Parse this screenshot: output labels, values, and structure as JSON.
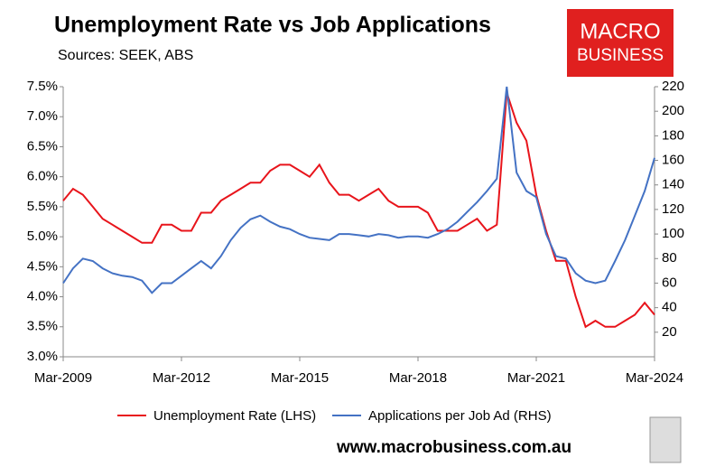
{
  "chart_data": {
    "type": "line",
    "title": "Unemployment Rate vs Job Applications",
    "subtitle": "Sources: SEEK, ABS",
    "logo": [
      "MACRO",
      "BUSINESS"
    ],
    "website": "www.macrobusiness.com.au",
    "x": [
      2009.17,
      2009.42,
      2009.67,
      2009.92,
      2010.17,
      2010.42,
      2010.67,
      2010.92,
      2011.17,
      2011.42,
      2011.67,
      2011.92,
      2012.17,
      2012.42,
      2012.67,
      2012.92,
      2013.17,
      2013.42,
      2013.67,
      2013.92,
      2014.17,
      2014.42,
      2014.67,
      2014.92,
      2015.17,
      2015.42,
      2015.67,
      2015.92,
      2016.17,
      2016.42,
      2016.67,
      2016.92,
      2017.17,
      2017.42,
      2017.67,
      2017.92,
      2018.17,
      2018.42,
      2018.67,
      2018.92,
      2019.17,
      2019.42,
      2019.67,
      2019.92,
      2020.17,
      2020.42,
      2020.67,
      2020.92,
      2021.17,
      2021.42,
      2021.67,
      2021.92,
      2022.17,
      2022.42,
      2022.67,
      2022.92,
      2023.17,
      2023.42,
      2023.67,
      2023.92,
      2024.17
    ],
    "series": [
      {
        "name": "Unemployment Rate (LHS)",
        "color": "#e8141b",
        "axis": "y",
        "values": [
          5.6,
          5.8,
          5.7,
          5.5,
          5.3,
          5.2,
          5.1,
          5.0,
          4.9,
          4.9,
          5.2,
          5.2,
          5.1,
          5.1,
          5.4,
          5.4,
          5.6,
          5.7,
          5.8,
          5.9,
          5.9,
          6.1,
          6.2,
          6.2,
          6.1,
          6.0,
          6.2,
          5.9,
          5.7,
          5.7,
          5.6,
          5.7,
          5.8,
          5.6,
          5.5,
          5.5,
          5.5,
          5.4,
          5.1,
          5.1,
          5.1,
          5.2,
          5.3,
          5.1,
          5.2,
          7.4,
          6.9,
          6.6,
          5.7,
          5.1,
          4.6,
          4.6,
          4.0,
          3.5,
          3.6,
          3.5,
          3.5,
          3.6,
          3.7,
          3.9,
          3.7
        ]
      },
      {
        "name": "Applications per Job Ad (RHS)",
        "color": "#4472c4",
        "axis": "y2",
        "values": [
          60,
          72,
          80,
          78,
          72,
          68,
          66,
          65,
          62,
          52,
          60,
          60,
          66,
          72,
          78,
          72,
          82,
          95,
          105,
          112,
          115,
          110,
          106,
          104,
          100,
          97,
          96,
          95,
          100,
          100,
          99,
          98,
          100,
          99,
          97,
          98,
          98,
          97,
          100,
          104,
          110,
          118,
          126,
          135,
          145,
          220,
          150,
          135,
          130,
          100,
          82,
          80,
          68,
          62,
          60,
          62,
          78,
          95,
          115,
          135,
          162
        ]
      }
    ],
    "xlim": [
      2009.17,
      2024.17
    ],
    "xticks": [
      {
        "value": 2009.17,
        "label": "Mar-2009"
      },
      {
        "value": 2012.17,
        "label": "Mar-2012"
      },
      {
        "value": 2015.17,
        "label": "Mar-2015"
      },
      {
        "value": 2018.17,
        "label": "Mar-2018"
      },
      {
        "value": 2021.17,
        "label": "Mar-2021"
      },
      {
        "value": 2024.17,
        "label": "Mar-2024"
      }
    ],
    "ylim": [
      3.0,
      7.5
    ],
    "yticks": [
      {
        "value": 3.0,
        "label": "3.0%"
      },
      {
        "value": 3.5,
        "label": "3.5%"
      },
      {
        "value": 4.0,
        "label": "4.0%"
      },
      {
        "value": 4.5,
        "label": "4.5%"
      },
      {
        "value": 5.0,
        "label": "5.0%"
      },
      {
        "value": 5.5,
        "label": "5.5%"
      },
      {
        "value": 6.0,
        "label": "6.0%"
      },
      {
        "value": 6.5,
        "label": "6.5%"
      },
      {
        "value": 7.0,
        "label": "7.0%"
      },
      {
        "value": 7.5,
        "label": "7.5%"
      }
    ],
    "y2lim": [
      0,
      220
    ],
    "y2ticks": [
      20,
      40,
      60,
      80,
      100,
      120,
      140,
      160,
      180,
      200,
      220
    ],
    "grid": false
  }
}
